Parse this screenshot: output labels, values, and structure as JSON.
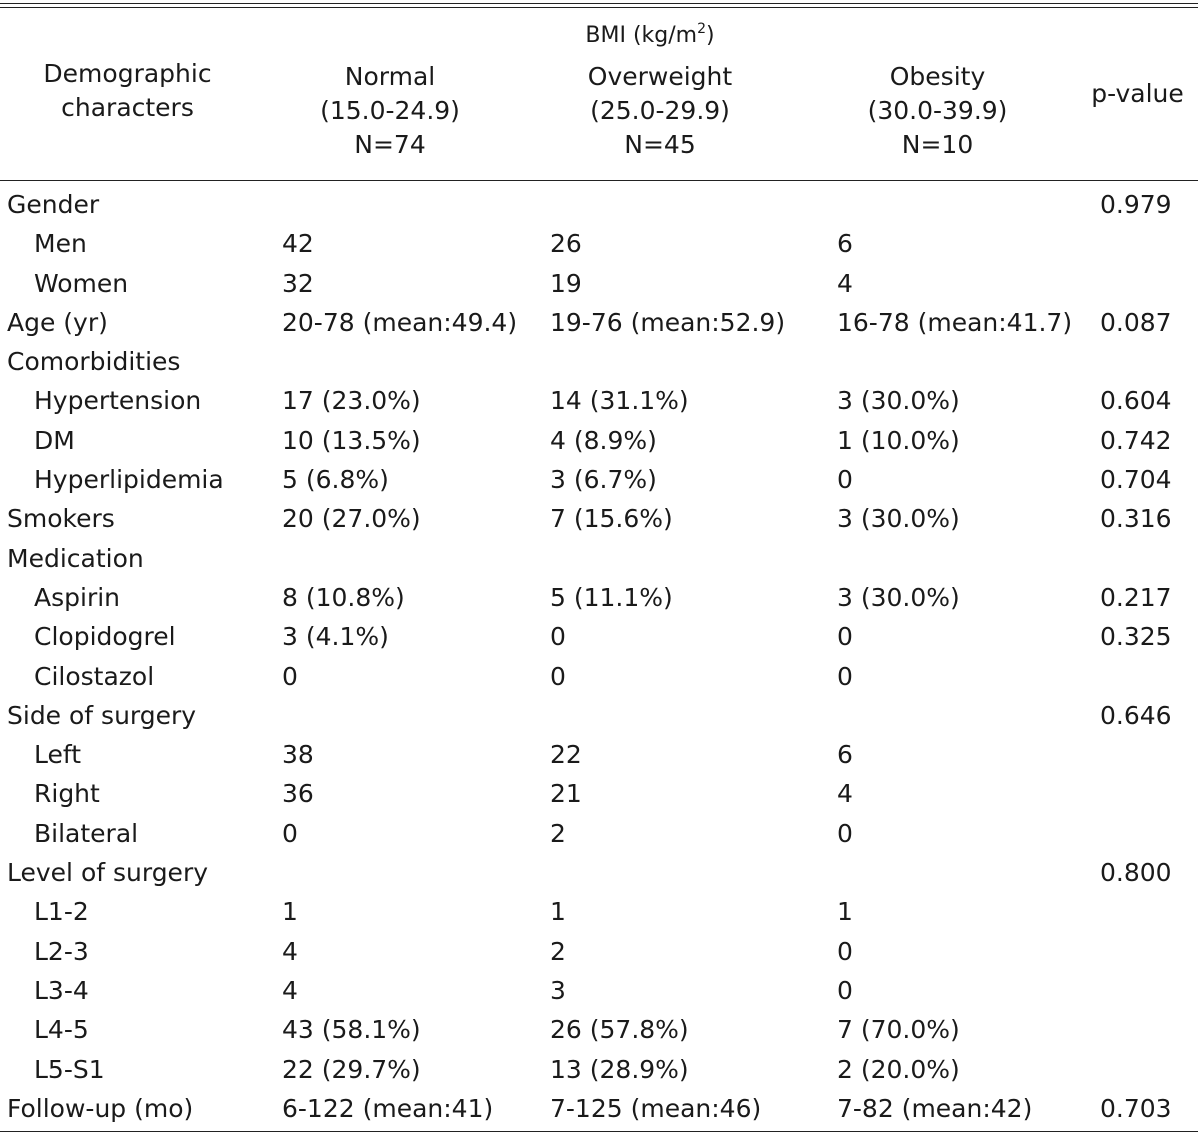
{
  "header": {
    "bmi_label": "BMI (kg/m",
    "bmi_sup": "2",
    "bmi_close": ")",
    "demo_line1": "Demographic",
    "demo_line2": "characters",
    "normal": {
      "name": "Normal",
      "range": "(15.0-24.9)",
      "n": "N=74"
    },
    "overweight": {
      "name": "Overweight",
      "range": "(25.0-29.9)",
      "n": "N=45"
    },
    "obesity": {
      "name": "Obesity",
      "range": "(30.0-39.9)",
      "n": "N=10"
    },
    "pvalue": "p-value"
  },
  "rows": [
    {
      "label": "Gender",
      "indent": false,
      "c1": "",
      "c2": "",
      "c3": "",
      "p": "0.979"
    },
    {
      "label": "Men",
      "indent": true,
      "c1": "42",
      "c2": "26",
      "c3": "6",
      "p": ""
    },
    {
      "label": "Women",
      "indent": true,
      "c1": "32",
      "c2": "19",
      "c3": "4",
      "p": ""
    },
    {
      "label": "Age (yr)",
      "indent": false,
      "c1": "20-78 (mean:49.4)",
      "c2": "19-76 (mean:52.9)",
      "c3": "16-78 (mean:41.7)",
      "p": "0.087"
    },
    {
      "label": "Comorbidities",
      "indent": false,
      "c1": "",
      "c2": "",
      "c3": "",
      "p": ""
    },
    {
      "label": "Hypertension",
      "indent": true,
      "c1": "17 (23.0%)",
      "c2": "14 (31.1%)",
      "c3": "3 (30.0%)",
      "p": "0.604"
    },
    {
      "label": "DM",
      "indent": true,
      "c1": "10 (13.5%)",
      "c2": "4 (8.9%)",
      "c3": "1 (10.0%)",
      "p": "0.742"
    },
    {
      "label": "Hyperlipidemia",
      "indent": true,
      "c1": "5 (6.8%)",
      "c2": "3 (6.7%)",
      "c3": "0",
      "p": "0.704"
    },
    {
      "label": "Smokers",
      "indent": false,
      "c1": "20 (27.0%)",
      "c2": "7 (15.6%)",
      "c3": "3 (30.0%)",
      "p": "0.316"
    },
    {
      "label": "Medication",
      "indent": false,
      "c1": "",
      "c2": "",
      "c3": "",
      "p": ""
    },
    {
      "label": "Aspirin",
      "indent": true,
      "c1": "8 (10.8%)",
      "c2": "5 (11.1%)",
      "c3": "3 (30.0%)",
      "p": "0.217"
    },
    {
      "label": "Clopidogrel",
      "indent": true,
      "c1": "3 (4.1%)",
      "c2": "0",
      "c3": "0",
      "p": "0.325"
    },
    {
      "label": "Cilostazol",
      "indent": true,
      "c1": "0",
      "c2": "0",
      "c3": "0",
      "p": ""
    },
    {
      "label": "Side  of  surgery",
      "indent": false,
      "c1": "",
      "c2": "",
      "c3": "",
      "p": "0.646"
    },
    {
      "label": "Left",
      "indent": true,
      "c1": "38",
      "c2": "22",
      "c3": "6",
      "p": ""
    },
    {
      "label": "Right",
      "indent": true,
      "c1": "36",
      "c2": "21",
      "c3": "4",
      "p": ""
    },
    {
      "label": "Bilateral",
      "indent": true,
      "c1": "0",
      "c2": "2",
      "c3": "0",
      "p": ""
    },
    {
      "label": "Level  of  surgery",
      "indent": false,
      "c1": "",
      "c2": "",
      "c3": "",
      "p": "0.800"
    },
    {
      "label": "L1-2",
      "indent": true,
      "c1": "1",
      "c2": "1",
      "c3": "1",
      "p": ""
    },
    {
      "label": "L2-3",
      "indent": true,
      "c1": "4",
      "c2": "2",
      "c3": "0",
      "p": ""
    },
    {
      "label": "L3-4",
      "indent": true,
      "c1": "4",
      "c2": "3",
      "c3": "0",
      "p": ""
    },
    {
      "label": "L4-5",
      "indent": true,
      "c1": "43 (58.1%)",
      "c2": "26 (57.8%)",
      "c3": "7 (70.0%)",
      "p": ""
    },
    {
      "label": "L5-S1",
      "indent": true,
      "c1": "22 (29.7%)",
      "c2": "13 (28.9%)",
      "c3": "2 (20.0%)",
      "p": ""
    },
    {
      "label": "Follow-up (mo)",
      "indent": false,
      "c1": "6-122 (mean:41)",
      "c2": "7-125 (mean:46)",
      "c3": "7-82 (mean:42)",
      "p": "0.703"
    }
  ]
}
